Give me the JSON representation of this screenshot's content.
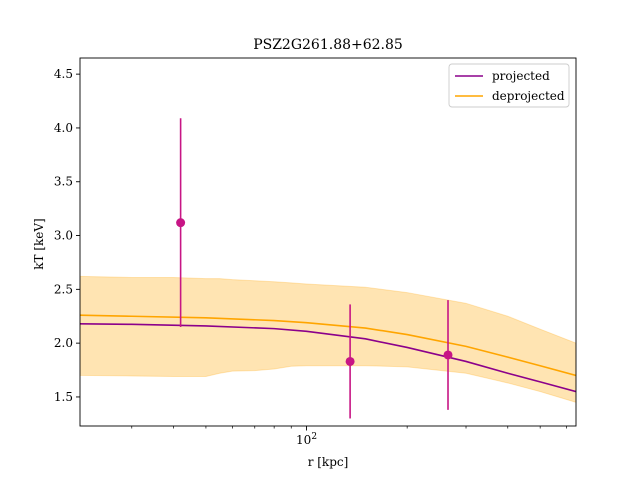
{
  "chart_data": {
    "type": "line",
    "title": "PSZ2G261.88+62.85",
    "xlabel": "r [kpc]",
    "ylabel": "kT [keV]",
    "xscale": "log",
    "xlim": [
      21,
      640
    ],
    "ylim": [
      1.23,
      4.65
    ],
    "grid": false,
    "legend_position": "top-right",
    "x_major_ticks": [
      {
        "value": 100,
        "label": "10^2"
      }
    ],
    "x_minor_ticks": [
      30,
      40,
      50,
      60,
      70,
      80,
      90,
      200,
      300,
      400,
      500,
      600
    ],
    "y_ticks": [
      1.5,
      2.0,
      2.5,
      3.0,
      3.5,
      4.0,
      4.5
    ],
    "y_tick_labels": [
      "1.5",
      "2.0",
      "2.5",
      "3.0",
      "3.5",
      "4.0",
      "4.5"
    ],
    "series": [
      {
        "name": "projected",
        "color": "#8b008b",
        "x": [
          21,
          30,
          50,
          80,
          100,
          150,
          200,
          300,
          400,
          500,
          640
        ],
        "y": [
          2.18,
          2.175,
          2.16,
          2.135,
          2.11,
          2.04,
          1.96,
          1.83,
          1.72,
          1.64,
          1.55
        ]
      },
      {
        "name": "deprojected",
        "color": "#ffa500",
        "x": [
          21,
          30,
          50,
          80,
          100,
          150,
          200,
          300,
          400,
          500,
          640
        ],
        "y": [
          2.26,
          2.25,
          2.235,
          2.21,
          2.19,
          2.14,
          2.08,
          1.97,
          1.87,
          1.79,
          1.7
        ]
      }
    ],
    "band": {
      "color": "#ffa500",
      "opacity": 0.3,
      "x": [
        21,
        30,
        40,
        50,
        55,
        60,
        70,
        80,
        90,
        100,
        150,
        200,
        300,
        400,
        500,
        640
      ],
      "upper": [
        2.62,
        2.61,
        2.61,
        2.6,
        2.6,
        2.59,
        2.58,
        2.57,
        2.56,
        2.55,
        2.52,
        2.47,
        2.37,
        2.25,
        2.13,
        2.0
      ],
      "lower": [
        1.7,
        1.695,
        1.69,
        1.69,
        1.72,
        1.74,
        1.745,
        1.76,
        1.785,
        1.79,
        1.79,
        1.78,
        1.72,
        1.63,
        1.55,
        1.45
      ]
    },
    "data_points": {
      "color": "#c71585",
      "points": [
        {
          "x": 42,
          "y": 3.12,
          "yerr_low": 0.97,
          "yerr_high": 0.97
        },
        {
          "x": 135,
          "y": 1.83,
          "yerr_low": 0.53,
          "yerr_high": 0.53
        },
        {
          "x": 265,
          "y": 1.89,
          "yerr_low": 0.51,
          "yerr_high": 0.51
        }
      ]
    }
  }
}
